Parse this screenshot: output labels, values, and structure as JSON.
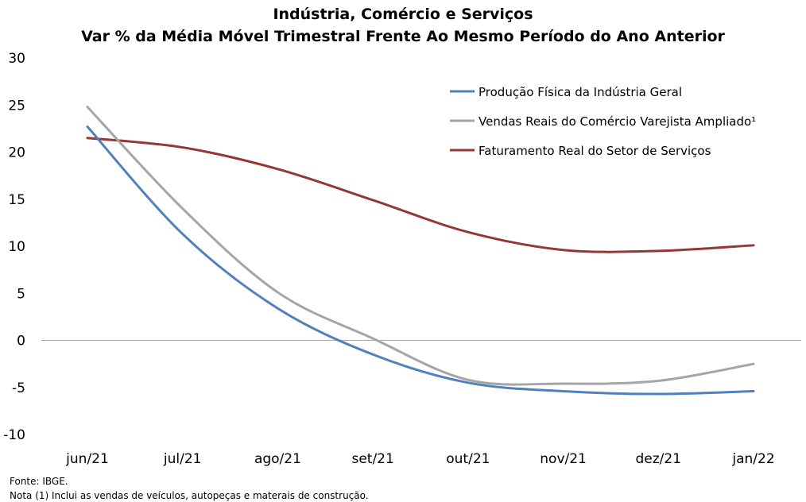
{
  "chart_data": {
    "type": "line",
    "title": "Indústria, Comércio e Serviços",
    "subtitle": "Var % da Média Móvel Trimestral Frente Ao Mesmo Período do Ano Anterior",
    "categories": [
      "jun/21",
      "jul/21",
      "ago/21",
      "set/21",
      "out/21",
      "nov/21",
      "dez/21",
      "jan/22"
    ],
    "ylim": [
      -10,
      30
    ],
    "yticks": [
      "30",
      "25",
      "20",
      "15",
      "10",
      "5",
      "0",
      "-5",
      "-10"
    ],
    "grid": false,
    "legend_position": "top-right",
    "series": [
      {
        "name": "Produção Física da Indústria Geral",
        "color": "#4f81bd",
        "values": [
          22.7,
          11.3,
          3.4,
          -1.5,
          -4.5,
          -5.4,
          -5.7,
          -5.4
        ]
      },
      {
        "name": "Vendas Reais do Comércio Varejista Ampliado¹",
        "color": "#a5a5a5",
        "values": [
          24.8,
          14.0,
          5.1,
          0.2,
          -4.2,
          -4.6,
          -4.3,
          -2.5
        ]
      },
      {
        "name": "Faturamento Real do Setor de Serviços",
        "color": "#953735",
        "values": [
          21.5,
          20.5,
          18.2,
          14.9,
          11.5,
          9.6,
          9.5,
          10.1
        ]
      }
    ]
  },
  "footnotes": {
    "source": "Fonte: IBGE.",
    "note": "Nota (1) Inclui as vendas de veículos, autopeças e materais de construção."
  }
}
